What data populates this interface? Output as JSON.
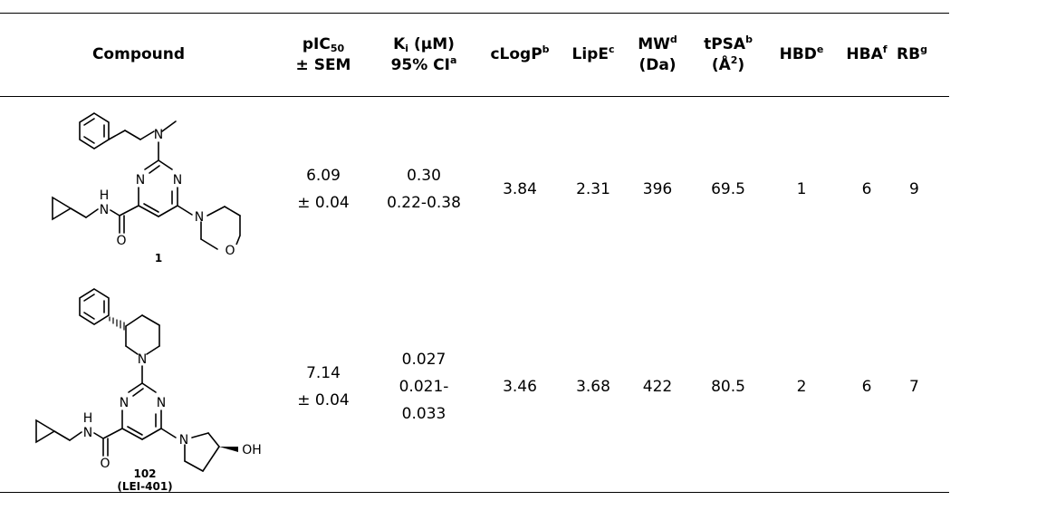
{
  "header": {
    "compound": "Compound",
    "pic50": {
      "main": "pIC",
      "sub": "50",
      "line2": "± SEM"
    },
    "ki": {
      "main": "K",
      "sub": "i",
      "rest": " (µM)",
      "line2": "95% CI",
      "sup": "a"
    },
    "clogp": {
      "main": "cLogP",
      "sup": "b"
    },
    "lipe": {
      "main": "LipE",
      "sup": "c"
    },
    "mw": {
      "main": "MW",
      "sup": "d",
      "line2": "(Da)"
    },
    "tpsa": {
      "main": "tPSA",
      "sup": "b",
      "line2a": "(Å",
      "line2sup": "2",
      "line2b": ")"
    },
    "hbd": {
      "main": "HBD",
      "sup": "e"
    },
    "hba": {
      "main": "HBA",
      "sup": "f"
    },
    "rb": {
      "main": "RB",
      "sup": "g"
    }
  },
  "rows": [
    {
      "label": "1",
      "label2": "",
      "pic50": "6.09",
      "pic50_sem": "± 0.04",
      "ki_lines": [
        "0.30",
        "0.22-0.38"
      ],
      "clogp": "3.84",
      "lipe": "2.31",
      "mw": "396",
      "tpsa": "69.5",
      "hbd": "1",
      "hba": "6",
      "rb": "9",
      "atoms": {
        "n_amine": "N",
        "n_ring1": "N",
        "n_ring2": "N",
        "n_amide": "N",
        "h_amide": "H",
        "o_carbonyl": "O",
        "n_morph": "N",
        "o_morph": "O"
      }
    },
    {
      "label": "102",
      "label2": "(LEI-401)",
      "pic50": "7.14",
      "pic50_sem": "± 0.04",
      "ki_lines": [
        "0.027",
        "0.021-",
        "0.033"
      ],
      "clogp": "3.46",
      "lipe": "3.68",
      "mw": "422",
      "tpsa": "80.5",
      "hbd": "2",
      "hba": "6",
      "rb": "7",
      "atoms": {
        "n_pip": "N",
        "n_ring1": "N",
        "n_ring2": "N",
        "n_amide": "N",
        "h_amide": "H",
        "o_carbonyl": "O",
        "n_pyr": "N",
        "oh": "OH"
      }
    }
  ]
}
